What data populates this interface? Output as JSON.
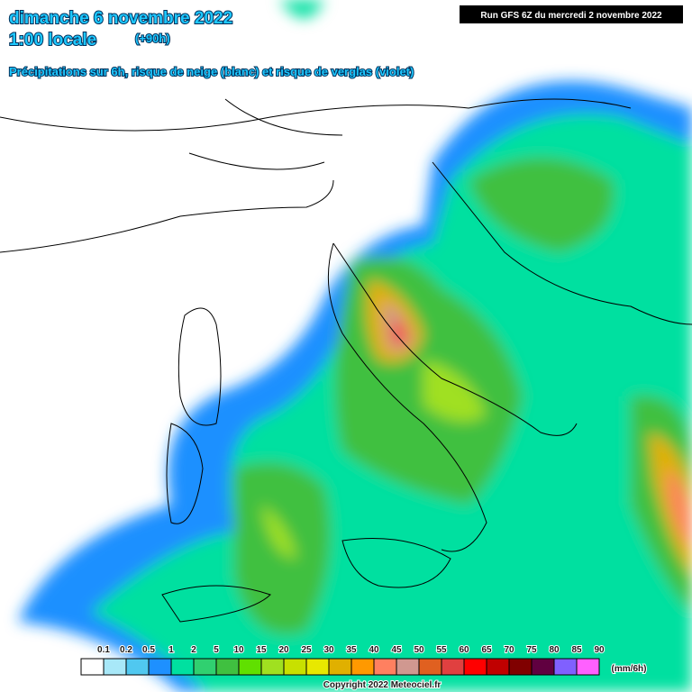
{
  "header": {
    "date": "dimanche 6 novembre 2022",
    "time": "1:00 locale",
    "lead": "(+90h)",
    "subtitle": "Précipitations sur 6h, risque de neige (blanc) et risque de verglas (violet)",
    "run": "Run GFS 6Z du mercredi 2 novembre 2022"
  },
  "legend": {
    "unit": "(mm/6h)",
    "items": [
      {
        "label": "0.1",
        "color": "#ffffff"
      },
      {
        "label": "0.2",
        "color": "#a8e8f8"
      },
      {
        "label": "0.5",
        "color": "#50c8f0"
      },
      {
        "label": "1",
        "color": "#1e90ff"
      },
      {
        "label": "2",
        "color": "#00e0a0"
      },
      {
        "label": "5",
        "color": "#30d070"
      },
      {
        "label": "10",
        "color": "#40c040"
      },
      {
        "label": "15",
        "color": "#60e000"
      },
      {
        "label": "20",
        "color": "#a0e020"
      },
      {
        "label": "25",
        "color": "#c8e000"
      },
      {
        "label": "30",
        "color": "#e8e800"
      },
      {
        "label": "35",
        "color": "#e0b000"
      },
      {
        "label": "40",
        "color": "#ff9900"
      },
      {
        "label": "45",
        "color": "#ff8060"
      },
      {
        "label": "50",
        "color": "#d09890"
      },
      {
        "label": "55",
        "color": "#e06020"
      },
      {
        "label": "60",
        "color": "#e04040"
      },
      {
        "label": "65",
        "color": "#ff0000"
      },
      {
        "label": "70",
        "color": "#c00000"
      },
      {
        "label": "75",
        "color": "#800000"
      },
      {
        "label": "80",
        "color": "#600040"
      },
      {
        "label": "85",
        "color": "#8060ff"
      },
      {
        "label": "90",
        "color": "#ff60ff"
      }
    ]
  },
  "footer": {
    "copyright": "Copyright 2022 Meteociel.fr"
  }
}
